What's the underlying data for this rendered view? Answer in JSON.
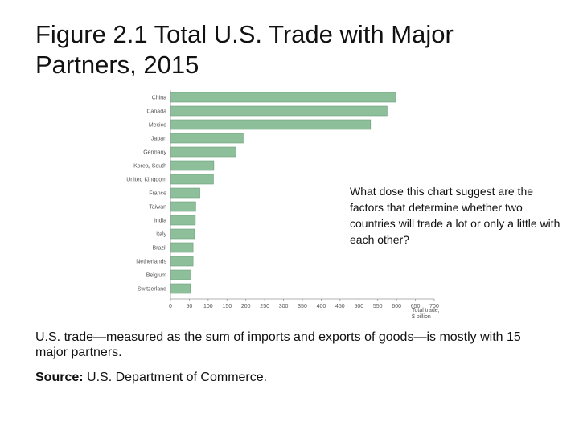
{
  "title": "Figure 2.1 Total U.S. Trade with Major Partners, 2015",
  "callout": "What dose this chart suggest are the factors that determine whether two countries will trade a lot or only a little with each other?",
  "caption": "U.S. trade—measured as the sum of imports and exports of goods—is mostly with 15 major partners.",
  "source": {
    "label": "Source:",
    "text": " U.S. Department of Commerce."
  },
  "chart_data": {
    "type": "bar",
    "orientation": "horizontal",
    "categories": [
      "China",
      "Canada",
      "Mexico",
      "Japan",
      "Germany",
      "Korea, South",
      "United Kingdom",
      "France",
      "Taiwan",
      "India",
      "Italy",
      "Brazil",
      "Netherlands",
      "Belgium",
      "Switzerland"
    ],
    "values": [
      598,
      575,
      531,
      193,
      174,
      115,
      114,
      78,
      67,
      66,
      64,
      60,
      60,
      54,
      53
    ],
    "xlabel_lines": [
      "Total trade,",
      "$ billion"
    ],
    "xticks": [
      0,
      50,
      100,
      150,
      200,
      250,
      300,
      350,
      400,
      450,
      500,
      550,
      600,
      650,
      700
    ],
    "xlim": [
      0,
      700
    ],
    "grid": false,
    "bar_color": "#8dbf9a",
    "bar_edge_color": "#6a9e79"
  }
}
